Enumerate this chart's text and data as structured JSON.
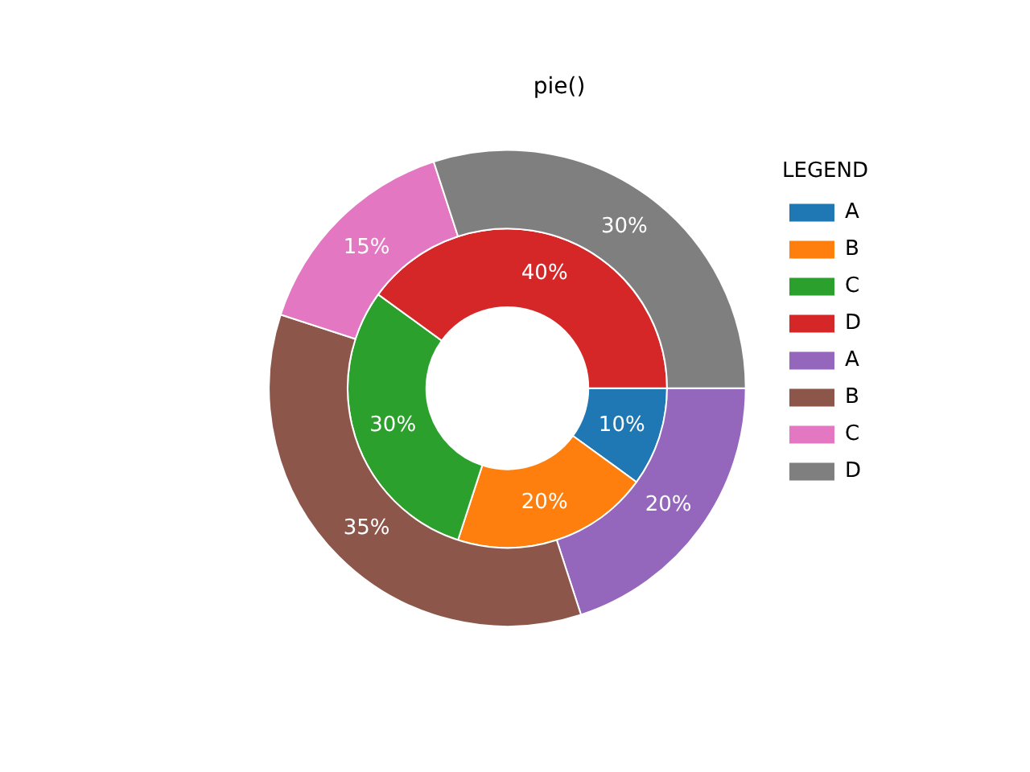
{
  "chart_data": {
    "type": "donut",
    "title": "pie()",
    "legend_title": "LEGEND",
    "legend": "right",
    "categories": [
      "A",
      "B",
      "C",
      "D"
    ],
    "series": [
      {
        "colors": [
          "#1f77b4",
          "#ff7f0e",
          "#2ca02c",
          "#d62728"
        ],
        "values": [
          10,
          20,
          30,
          40
        ],
        "value_labels": [
          "10%",
          "20%",
          "30%",
          "40%"
        ]
      },
      {
        "colors": [
          "#9467bd",
          "#8c564b",
          "#e377c2",
          "#7f7f7f"
        ],
        "values": [
          20,
          35,
          15,
          30
        ],
        "value_labels": [
          "20%",
          "35%",
          "15%",
          "30%"
        ]
      }
    ]
  }
}
